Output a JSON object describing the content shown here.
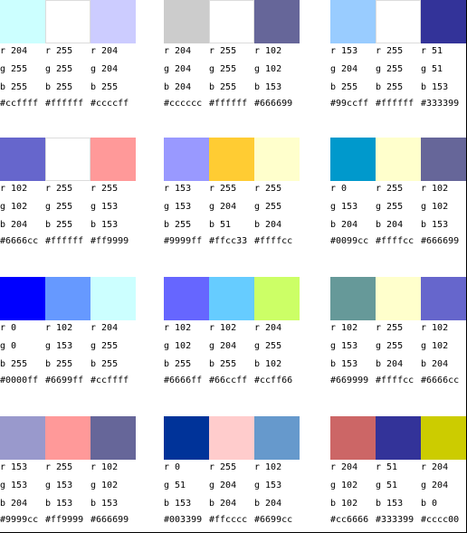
{
  "groups": [
    {
      "colors": [
        {
          "hex": "#ccffff",
          "r": "r 204",
          "g": "g 255",
          "b": "b 255",
          "label": "#ccffff"
        },
        {
          "hex": "#ffffff",
          "r": "r 255",
          "g": "g 255",
          "b": "b 255",
          "label": "#ffffff"
        },
        {
          "hex": "#ccccff",
          "r": "r 204",
          "g": "g 204",
          "b": "b 255",
          "label": "#ccccff"
        }
      ]
    },
    {
      "colors": [
        {
          "hex": "#cccccc",
          "r": "r 204",
          "g": "g 204",
          "b": "b 204",
          "label": "#cccccc"
        },
        {
          "hex": "#ffffff",
          "r": "r 255",
          "g": "g 255",
          "b": "b 255",
          "label": "#ffffff"
        },
        {
          "hex": "#666699",
          "r": "r 102",
          "g": "g 102",
          "b": "b 153",
          "label": "#666699"
        }
      ]
    },
    {
      "colors": [
        {
          "hex": "#99ccff",
          "r": "r 153",
          "g": "g 204",
          "b": "b 255",
          "label": "#99ccff"
        },
        {
          "hex": "#ffffff",
          "r": "r 255",
          "g": "g 255",
          "b": "b 255",
          "label": "#ffffff"
        },
        {
          "hex": "#333399",
          "r": "r 51",
          "g": "g 51",
          "b": "b 153",
          "label": "#333399"
        }
      ]
    },
    {
      "colors": [
        {
          "hex": "#6666cc",
          "r": "r 102",
          "g": "g 102",
          "b": "b 204",
          "label": "#6666cc"
        },
        {
          "hex": "#ffffff",
          "r": "r 255",
          "g": "g 255",
          "b": "b 255",
          "label": "#ffffff"
        },
        {
          "hex": "#ff9999",
          "r": "r 255",
          "g": "g 153",
          "b": "b 153",
          "label": "#ff9999"
        }
      ]
    },
    {
      "colors": [
        {
          "hex": "#9999ff",
          "r": "r 153",
          "g": "g 153",
          "b": "b 255",
          "label": "#9999ff"
        },
        {
          "hex": "#ffcc33",
          "r": "r 255",
          "g": "g 204",
          "b": "b 51",
          "label": "#ffcc33"
        },
        {
          "hex": "#ffffcc",
          "r": "r 255",
          "g": "g 255",
          "b": "b 204",
          "label": "#ffffcc"
        }
      ]
    },
    {
      "colors": [
        {
          "hex": "#0099cc",
          "r": "r 0",
          "g": "g 153",
          "b": "b 204",
          "label": "#0099cc"
        },
        {
          "hex": "#ffffcc",
          "r": "r 255",
          "g": "g 255",
          "b": "b 204",
          "label": "#ffffcc"
        },
        {
          "hex": "#666699",
          "r": "r 102",
          "g": "g 102",
          "b": "b 153",
          "label": "#666699"
        }
      ]
    },
    {
      "colors": [
        {
          "hex": "#0000ff",
          "r": "r 0",
          "g": "g 0",
          "b": "b 255",
          "label": "#0000ff"
        },
        {
          "hex": "#6699ff",
          "r": "r 102",
          "g": "g 153",
          "b": "b 255",
          "label": "#6699ff"
        },
        {
          "hex": "#ccffff",
          "r": "r 204",
          "g": "g 255",
          "b": "b 255",
          "label": "#ccffff"
        }
      ]
    },
    {
      "colors": [
        {
          "hex": "#6666ff",
          "r": "r 102",
          "g": "g 102",
          "b": "b 255",
          "label": "#6666ff"
        },
        {
          "hex": "#66ccff",
          "r": "r 102",
          "g": "g 204",
          "b": "b 255",
          "label": "#66ccff"
        },
        {
          "hex": "#ccff66",
          "r": "r 204",
          "g": "g 255",
          "b": "b 102",
          "label": "#ccff66"
        }
      ]
    },
    {
      "colors": [
        {
          "hex": "#669999",
          "r": "r 102",
          "g": "g 153",
          "b": "b 153",
          "label": "#669999"
        },
        {
          "hex": "#ffffcc",
          "r": "r 255",
          "g": "g 255",
          "b": "b 204",
          "label": "#ffffcc"
        },
        {
          "hex": "#6666cc",
          "r": "r 102",
          "g": "g 102",
          "b": "b 204",
          "label": "#6666cc"
        }
      ]
    },
    {
      "colors": [
        {
          "hex": "#9999cc",
          "r": "r 153",
          "g": "g 153",
          "b": "b 204",
          "label": "#9999cc"
        },
        {
          "hex": "#ff9999",
          "r": "r 255",
          "g": "g 153",
          "b": "b 153",
          "label": "#ff9999"
        },
        {
          "hex": "#666699",
          "r": "r 102",
          "g": "g 102",
          "b": "b 153",
          "label": "#666699"
        }
      ]
    },
    {
      "colors": [
        {
          "hex": "#003399",
          "r": "r 0",
          "g": "g 51",
          "b": "b 153",
          "label": "#003399"
        },
        {
          "hex": "#ffcccc",
          "r": "r 255",
          "g": "g 204",
          "b": "b 204",
          "label": "#ffcccc"
        },
        {
          "hex": "#6699cc",
          "r": "r 102",
          "g": "g 153",
          "b": "b 204",
          "label": "#6699cc"
        }
      ]
    },
    {
      "colors": [
        {
          "hex": "#cc6666",
          "r": "r 204",
          "g": "g 102",
          "b": "b 102",
          "label": "#cc6666"
        },
        {
          "hex": "#333399",
          "r": "r 51",
          "g": "g 51",
          "b": "b 153",
          "label": "#333399"
        },
        {
          "hex": "#cccc00",
          "r": "r 204",
          "g": "g 204",
          "b": "b 0",
          "label": "#cccc00"
        }
      ]
    }
  ]
}
